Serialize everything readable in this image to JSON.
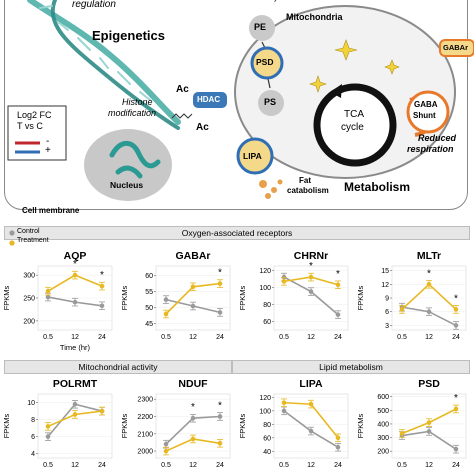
{
  "diagram": {
    "top_labels": {
      "regulation": "regulation",
      "synthesis": "synthesis",
      "epigenetics": "Epigenetics",
      "histone_modification_1": "Histone",
      "histone_modification_2": "modification",
      "nucleus": "Nucleus",
      "cell_membrane": "Cell membrane",
      "mitochondria": "Mitochondria",
      "metabolism": "Metabolism",
      "fat_catabolism_1": "Fat",
      "fat_catabolism_2": "catabolism",
      "reduced_respiration_1": "Reduced",
      "reduced_respiration_2": "respiration",
      "tca_cycle_1": "TCA",
      "tca_cycle_2": "cycle",
      "gaba_shunt_1": "GABA",
      "gaba_shunt_2": "Shunt"
    },
    "nodes": {
      "pe": "PE",
      "psd": "PSD",
      "ps": "PS",
      "lipa": "LIPA",
      "hdac": "HDAC",
      "gabar": "GABAr",
      "ac1": "Ac",
      "ac2": "Ac"
    },
    "legend": {
      "title_1": "Log2 FC",
      "title_2": "T vs C",
      "minus": "-",
      "plus": "+",
      "colors": {
        "minus": "#c0262d",
        "plus": "#2f6db5"
      }
    }
  },
  "sections": {
    "oxygen": "Oxygen-associated receptors",
    "mito": "Mitochondrial activity",
    "lipid": "Lipid metabolism"
  },
  "series_legend": {
    "control": "Control",
    "treatment": "Treatment"
  },
  "colors": {
    "control": "#9a9a9a",
    "treatment": "#e8b820",
    "helix": "#5fb8b0",
    "accent_blue": "#3a78b8",
    "node_orange": "#e8782a"
  },
  "chart_data": [
    {
      "type": "line",
      "title": "AQP",
      "ylabel": "FPKMs",
      "xlabel": "Time (hr)",
      "categories": [
        "0.5",
        "12",
        "24"
      ],
      "yticks": [
        "200",
        "250",
        "300"
      ],
      "ylim": [
        180,
        320
      ],
      "series": [
        {
          "name": "Control",
          "values": [
            252,
            241,
            233
          ]
        },
        {
          "name": "Treatment",
          "values": [
            265,
            300,
            276
          ]
        }
      ],
      "significance": [
        "",
        "*",
        "*"
      ]
    },
    {
      "type": "line",
      "title": "GABAr",
      "ylabel": "FPKMs",
      "xlabel": "",
      "categories": [
        "0.5",
        "12",
        "24"
      ],
      "yticks": [
        "45",
        "50",
        "55",
        "60"
      ],
      "ylim": [
        43,
        63
      ],
      "series": [
        {
          "name": "Control",
          "values": [
            52.5,
            50.5,
            48.5
          ]
        },
        {
          "name": "Treatment",
          "values": [
            48,
            56.5,
            57.5
          ]
        }
      ],
      "significance": [
        "",
        "",
        "*"
      ]
    },
    {
      "type": "line",
      "title": "CHRNr",
      "ylabel": "FPKMs",
      "xlabel": "",
      "categories": [
        "0.5",
        "12",
        "24"
      ],
      "yticks": [
        "60",
        "80",
        "100",
        "120"
      ],
      "ylim": [
        50,
        125
      ],
      "series": [
        {
          "name": "Control",
          "values": [
            112,
            95,
            68
          ]
        },
        {
          "name": "Treatment",
          "values": [
            107,
            112,
            103
          ]
        }
      ],
      "significance": [
        "",
        "*",
        "*"
      ]
    },
    {
      "type": "line",
      "title": "MLTr",
      "ylabel": "FPKMs",
      "xlabel": "",
      "categories": [
        "0.5",
        "12",
        "24"
      ],
      "yticks": [
        "3",
        "6",
        "9",
        "12",
        "15"
      ],
      "ylim": [
        2,
        16
      ],
      "series": [
        {
          "name": "Control",
          "values": [
            7.0,
            6.0,
            3.0
          ]
        },
        {
          "name": "Treatment",
          "values": [
            6.5,
            12.0,
            6.5
          ]
        }
      ],
      "significance": [
        "",
        "*",
        "*"
      ]
    },
    {
      "type": "line",
      "title": "POLRMT",
      "ylabel": "FPKMs",
      "xlabel": "",
      "categories": [
        "0.5",
        "12",
        "24"
      ],
      "yticks": [
        "4",
        "6",
        "8",
        "10"
      ],
      "ylim": [
        3.5,
        11
      ],
      "series": [
        {
          "name": "Control",
          "values": [
            6.0,
            9.8,
            9.0
          ]
        },
        {
          "name": "Treatment",
          "values": [
            7.2,
            8.6,
            9.0
          ]
        }
      ],
      "significance": [
        "",
        "",
        ""
      ]
    },
    {
      "type": "line",
      "title": "NDUF",
      "ylabel": "FPKMs",
      "xlabel": "",
      "categories": [
        "0.5",
        "12",
        "24"
      ],
      "yticks": [
        "2000",
        "2100",
        "2200",
        "2300"
      ],
      "ylim": [
        1960,
        2330
      ],
      "series": [
        {
          "name": "Control",
          "values": [
            2040,
            2190,
            2200
          ]
        },
        {
          "name": "Treatment",
          "values": [
            2000,
            2070,
            2045
          ]
        }
      ],
      "significance": [
        "",
        "*",
        "*"
      ]
    },
    {
      "type": "line",
      "title": "LIPA",
      "ylabel": "FPKMs",
      "xlabel": "",
      "categories": [
        "0.5",
        "12",
        "24"
      ],
      "yticks": [
        "40",
        "60",
        "80",
        "100",
        "120"
      ],
      "ylim": [
        30,
        125
      ],
      "series": [
        {
          "name": "Control",
          "values": [
            100,
            70,
            46
          ]
        },
        {
          "name": "Treatment",
          "values": [
            112,
            110,
            60
          ]
        }
      ],
      "significance": [
        "",
        "",
        ""
      ]
    },
    {
      "type": "line",
      "title": "PSD",
      "ylabel": "FPKMs",
      "xlabel": "",
      "categories": [
        "0.5",
        "12",
        "24"
      ],
      "yticks": [
        "200",
        "300",
        "400",
        "500",
        "600"
      ],
      "ylim": [
        150,
        620
      ],
      "series": [
        {
          "name": "Control",
          "values": [
            315,
            345,
            215
          ]
        },
        {
          "name": "Treatment",
          "values": [
            330,
            410,
            510
          ]
        }
      ],
      "significance": [
        "",
        "",
        "*"
      ]
    }
  ]
}
